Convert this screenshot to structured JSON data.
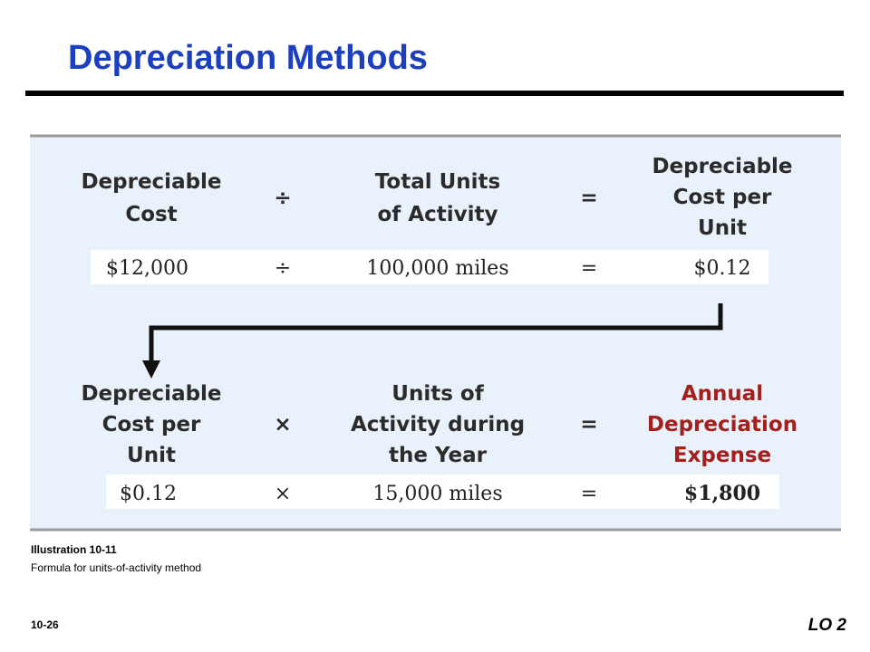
{
  "title": "Depreciation Methods",
  "formula1": {
    "terms": [
      {
        "lines": [
          "Depreciable",
          "Cost"
        ]
      },
      {
        "lines": [
          "Total Units",
          "of Activity"
        ]
      },
      {
        "lines": [
          "Depreciable",
          "Cost per",
          "Unit"
        ]
      }
    ],
    "operator": "÷",
    "equals": "=",
    "values": [
      "$12,000",
      "÷",
      "100,000 miles",
      "=",
      "$0.12"
    ]
  },
  "formula2": {
    "terms": [
      {
        "lines": [
          "Depreciable",
          "Cost per",
          "Unit"
        ]
      },
      {
        "lines": [
          "Units of",
          "Activity during",
          "the Year"
        ]
      },
      {
        "lines": [
          "Annual",
          "Depreciation",
          "Expense"
        ]
      }
    ],
    "operator": "×",
    "equals": "=",
    "values": [
      "$0.12",
      "×",
      "15,000 miles",
      "=",
      "$1,800"
    ]
  },
  "caption": {
    "label": "Illustration 10-11",
    "text": "Formula for units-of-activity method"
  },
  "footer": {
    "page": "10-26",
    "lo": "LO 2"
  }
}
